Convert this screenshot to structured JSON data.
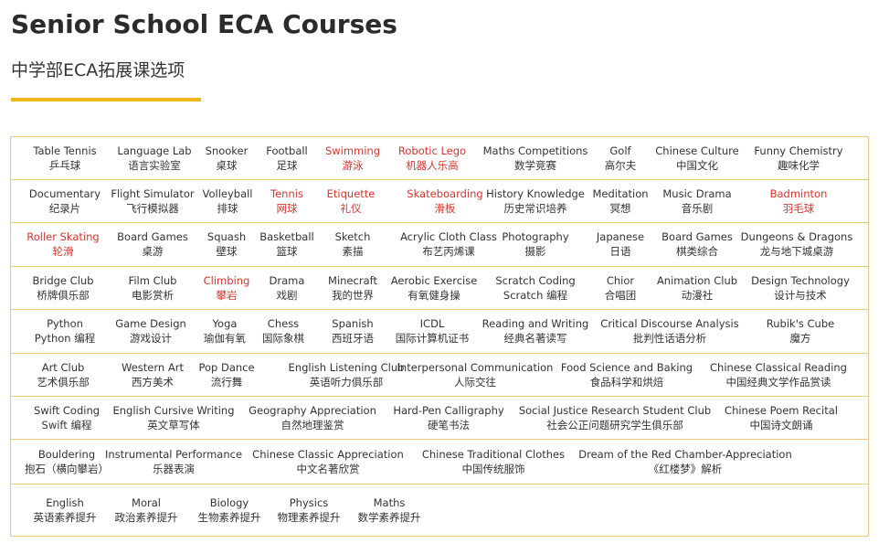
{
  "header": {
    "title": "Senior School ECA Courses",
    "subtitle": "中学部ECA拓展课选项"
  },
  "colors": {
    "accent": "#f2b61c",
    "border": "#f0c87c",
    "highlight_text": "#d9352b",
    "normal_text": "#333333"
  },
  "rows": [
    {
      "courses": [
        {
          "en": "Table Tennis",
          "zh": "乒乓球",
          "highlight": false
        },
        {
          "en": "Language Lab",
          "zh": "语言实验室",
          "highlight": false
        },
        {
          "en": "Snooker",
          "zh": "桌球",
          "highlight": false
        },
        {
          "en": "Football",
          "zh": "足球",
          "highlight": false
        },
        {
          "en": "Swimming",
          "zh": "游泳",
          "highlight": true
        },
        {
          "en": "Robotic Lego",
          "zh": "机器人乐高",
          "highlight": true
        },
        {
          "en": "Maths Competitions",
          "zh": "数学竞赛",
          "highlight": false
        },
        {
          "en": "Golf",
          "zh": "高尔夫",
          "highlight": false
        },
        {
          "en": "Chinese Culture",
          "zh": "中国文化",
          "highlight": false
        },
        {
          "en": "Funny Chemistry",
          "zh": "趣味化学",
          "highlight": false
        }
      ]
    },
    {
      "courses": [
        {
          "en": "Documentary",
          "zh": "纪录片",
          "highlight": false
        },
        {
          "en": "Flight Simulator",
          "zh": "飞行模拟器",
          "highlight": false
        },
        {
          "en": "Volleyball",
          "zh": "排球",
          "highlight": false
        },
        {
          "en": "Tennis",
          "zh": "网球",
          "highlight": true
        },
        {
          "en": "Etiquette",
          "zh": "礼仪",
          "highlight": true
        },
        {
          "en": "Skateboarding",
          "zh": "滑板",
          "highlight": true
        },
        {
          "en": "History Knowledge",
          "zh": "历史常识培养",
          "highlight": false
        },
        {
          "en": "Meditation",
          "zh": "冥想",
          "highlight": false
        },
        {
          "en": "Music Drama",
          "zh": "音乐剧",
          "highlight": false
        },
        {
          "en": "Badminton",
          "zh": "羽毛球",
          "highlight": true
        }
      ]
    },
    {
      "courses": [
        {
          "en": "Roller Skating",
          "zh": "轮滑",
          "highlight": true
        },
        {
          "en": "Board Games",
          "zh": "桌游",
          "highlight": false
        },
        {
          "en": "Squash",
          "zh": "壁球",
          "highlight": false
        },
        {
          "en": "Basketball",
          "zh": "篮球",
          "highlight": false
        },
        {
          "en": "Sketch",
          "zh": "素描",
          "highlight": false
        },
        {
          "en": "Acrylic Cloth Class",
          "zh": "布艺丙烯课",
          "highlight": false
        },
        {
          "en": "Photography",
          "zh": "摄影",
          "highlight": false
        },
        {
          "en": "Japanese",
          "zh": "日语",
          "highlight": false
        },
        {
          "en": "Board Games",
          "zh": "棋类综合",
          "highlight": false
        },
        {
          "en": "Dungeons & Dragons",
          "zh": "龙与地下城桌游",
          "highlight": false
        }
      ]
    },
    {
      "courses": [
        {
          "en": "Bridge Club",
          "zh": "桥牌俱乐部",
          "highlight": false
        },
        {
          "en": "Film Club",
          "zh": "电影赏析",
          "highlight": false
        },
        {
          "en": "Climbing",
          "zh": "攀岩",
          "highlight": true
        },
        {
          "en": "Drama",
          "zh": "戏剧",
          "highlight": false
        },
        {
          "en": "Minecraft",
          "zh": "我的世界",
          "highlight": false
        },
        {
          "en": "Aerobic Exercise",
          "zh": "有氧健身操",
          "highlight": false
        },
        {
          "en": "Scratch Coding",
          "zh": "Scratch 编程",
          "highlight": false
        },
        {
          "en": "Chior",
          "zh": "合唱团",
          "highlight": false
        },
        {
          "en": "Animation Club",
          "zh": "动漫社",
          "highlight": false
        },
        {
          "en": "Design Technology",
          "zh": "设计与技术",
          "highlight": false
        }
      ]
    },
    {
      "courses": [
        {
          "en": "Python",
          "zh": "Python 编程",
          "highlight": false
        },
        {
          "en": "Game Design",
          "zh": "游戏设计",
          "highlight": false
        },
        {
          "en": "Yoga",
          "zh": "瑜伽有氧",
          "highlight": false
        },
        {
          "en": "Chess",
          "zh": "国际象棋",
          "highlight": false
        },
        {
          "en": "Spanish",
          "zh": "西班牙语",
          "highlight": false
        },
        {
          "en": "ICDL",
          "zh": "国际计算机证书",
          "highlight": false
        },
        {
          "en": "Reading and Writing",
          "zh": "经典名著读写",
          "highlight": false
        },
        {
          "en": "Critical Discourse Analysis",
          "zh": "批判性话语分析",
          "highlight": false
        },
        {
          "en": "Rubik's Cube",
          "zh": "魔方",
          "highlight": false
        }
      ]
    },
    {
      "courses": [
        {
          "en": "Art Club",
          "zh": "艺术俱乐部",
          "highlight": false
        },
        {
          "en": "Western Art",
          "zh": "西方美术",
          "highlight": false
        },
        {
          "en": "Pop Dance",
          "zh": "流行舞",
          "highlight": false
        },
        {
          "en": "English Listening Club",
          "zh": "英语听力俱乐部",
          "highlight": false
        },
        {
          "en": "Interpersonal Communication",
          "zh": "人际交往",
          "highlight": false
        },
        {
          "en": "Food Science and Baking",
          "zh": "食品科学和烘焙",
          "highlight": false
        },
        {
          "en": "Chinese Classical Reading",
          "zh": "中国经典文学作品赏读",
          "highlight": false
        }
      ]
    },
    {
      "courses": [
        {
          "en": "Swift Coding",
          "zh": "Swift 编程",
          "highlight": false
        },
        {
          "en": "English Cursive Writing",
          "zh": "英文草写体",
          "highlight": false
        },
        {
          "en": "Geography Appreciation",
          "zh": "自然地理鉴赏",
          "highlight": false
        },
        {
          "en": "Hard-Pen Calligraphy",
          "zh": "硬笔书法",
          "highlight": false
        },
        {
          "en": "Social Justice Research Student Club",
          "zh": "社会公正问题研究学生俱乐部",
          "highlight": false
        },
        {
          "en": "Chinese Poem Recital",
          "zh": "中国诗文朗诵",
          "highlight": false
        }
      ]
    },
    {
      "courses": [
        {
          "en": "Bouldering",
          "zh": "抱石（横向攀岩）",
          "highlight": false
        },
        {
          "en": "Instrumental Performance",
          "zh": "乐器表演",
          "highlight": false
        },
        {
          "en": "Chinese Classic Appreciation",
          "zh": "中文名著欣赏",
          "highlight": false
        },
        {
          "en": "Chinese Traditional Clothes",
          "zh": "中国传统服饰",
          "highlight": false
        },
        {
          "en": "Dream of the Red Chamber-Appreciation",
          "zh": "《红楼梦》解析",
          "highlight": false
        }
      ]
    },
    {
      "courses": [
        {
          "en": "English",
          "zh": "英语素养提升",
          "highlight": false
        },
        {
          "en": "Moral",
          "zh": "政治素养提升",
          "highlight": false
        },
        {
          "en": "Biology",
          "zh": "生物素养提升",
          "highlight": false
        },
        {
          "en": "Physics",
          "zh": "物理素养提升",
          "highlight": false
        },
        {
          "en": "Maths",
          "zh": "数学素养提升",
          "highlight": false
        }
      ]
    }
  ]
}
